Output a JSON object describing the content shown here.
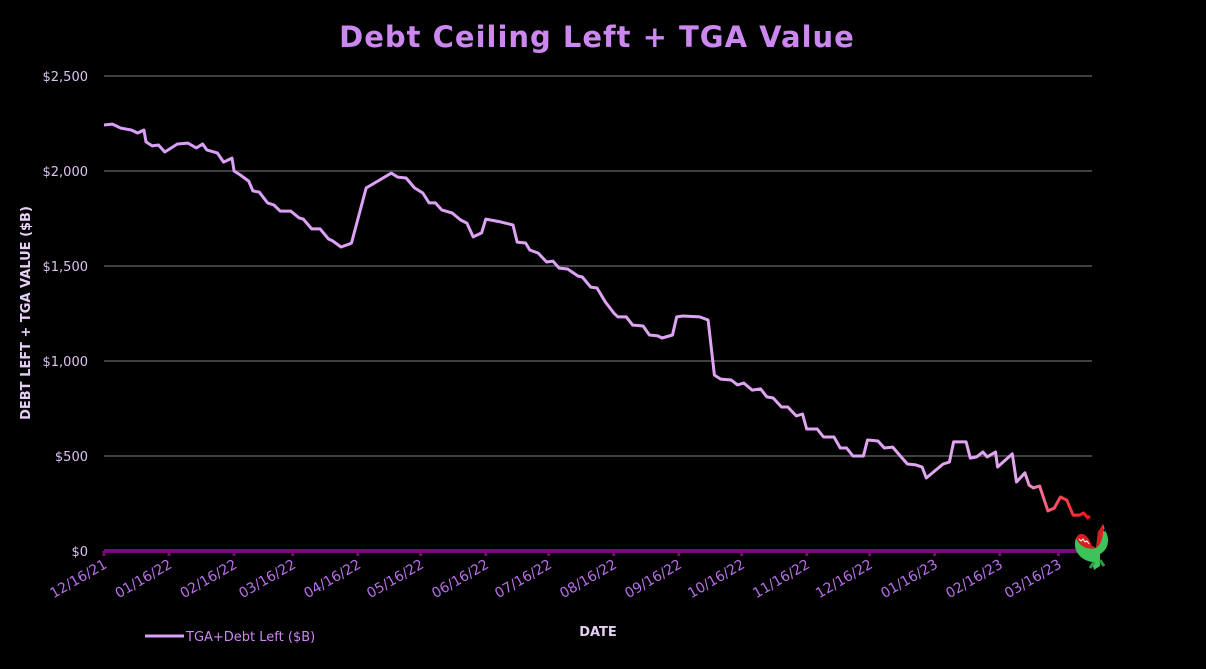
{
  "chart_data": {
    "type": "line",
    "title": "Debt Ceiling Left + TGA Value",
    "xlabel": "DATE",
    "ylabel": "DEBT LEFT + TGA VALUE ($B)",
    "xlim": [
      "2021-12-16",
      "2023-04-01"
    ],
    "ylim": [
      0,
      2500
    ],
    "y_ticks": [
      0,
      500,
      1000,
      1500,
      2000,
      2500
    ],
    "y_tick_labels": [
      "$0",
      "$500",
      "$1,000",
      "$1,500",
      "$2,000",
      "$2,500"
    ],
    "x_ticks": [
      "2021-12-16",
      "2022-01-16",
      "2022-02-16",
      "2022-03-16",
      "2022-04-16",
      "2022-05-16",
      "2022-06-16",
      "2022-07-16",
      "2022-08-16",
      "2022-09-16",
      "2022-10-16",
      "2022-11-16",
      "2022-12-16",
      "2023-01-16",
      "2023-02-16",
      "2023-03-16"
    ],
    "x_tick_labels": [
      "12/16/21",
      "01/16/22",
      "02/16/22",
      "03/16/22",
      "04/16/22",
      "05/16/22",
      "06/16/22",
      "07/16/22",
      "08/16/22",
      "09/16/22",
      "10/16/22",
      "11/16/22",
      "12/16/22",
      "01/16/23",
      "02/16/23",
      "03/16/23"
    ],
    "grid": true,
    "legend_placement": "bottom-left",
    "colors": {
      "line": "#d9a0f8",
      "line_end": "#ff1010",
      "axis": "#7a0a7a",
      "grid": "#404040",
      "title": "#cc88f0"
    },
    "icon": "crocodile-icon",
    "series": [
      {
        "name": "TGA+Debt Left ($B)",
        "x": [
          "2021-12-16",
          "2021-12-20",
          "2021-12-24",
          "2021-12-29",
          "2022-01-01",
          "2022-01-04",
          "2022-01-05",
          "2022-01-08",
          "2022-01-11",
          "2022-01-14",
          "2022-01-20",
          "2022-01-25",
          "2022-01-29",
          "2022-02-01",
          "2022-02-03",
          "2022-02-08",
          "2022-02-11",
          "2022-02-15",
          "2022-02-16",
          "2022-02-19",
          "2022-02-23",
          "2022-02-25",
          "2022-02-28",
          "2022-03-04",
          "2022-03-07",
          "2022-03-10",
          "2022-03-15",
          "2022-03-19",
          "2022-03-21",
          "2022-03-25",
          "2022-03-29",
          "2022-04-02",
          "2022-04-04",
          "2022-04-08",
          "2022-04-12",
          "2022-04-13",
          "2022-04-20",
          "2022-04-24",
          "2022-04-28",
          "2022-05-02",
          "2022-05-05",
          "2022-05-09",
          "2022-05-13",
          "2022-05-17",
          "2022-05-20",
          "2022-05-23",
          "2022-05-26",
          "2022-05-31",
          "2022-06-04",
          "2022-06-07",
          "2022-06-10",
          "2022-06-14",
          "2022-06-16",
          "2022-06-23",
          "2022-06-29",
          "2022-07-01",
          "2022-07-05",
          "2022-07-07",
          "2022-07-11",
          "2022-07-15",
          "2022-07-18",
          "2022-07-21",
          "2022-07-25",
          "2022-07-30",
          "2022-08-01",
          "2022-08-05",
          "2022-08-08",
          "2022-08-12",
          "2022-08-16",
          "2022-08-18",
          "2022-08-22",
          "2022-08-25",
          "2022-08-30",
          "2022-09-02",
          "2022-09-06",
          "2022-09-08",
          "2022-09-13",
          "2022-09-15",
          "2022-09-18",
          "2022-09-26",
          "2022-09-30",
          "2022-10-03",
          "2022-10-06",
          "2022-10-11",
          "2022-10-14",
          "2022-10-17",
          "2022-10-21",
          "2022-10-25",
          "2022-10-28",
          "2022-10-31",
          "2022-11-04",
          "2022-11-07",
          "2022-11-11",
          "2022-11-14",
          "2022-11-16",
          "2022-11-21",
          "2022-11-24",
          "2022-11-29",
          "2022-12-02",
          "2022-12-05",
          "2022-12-08",
          "2022-12-13",
          "2022-12-15",
          "2022-12-20",
          "2022-12-23",
          "2022-12-27",
          "2022-12-31",
          "2023-01-03",
          "2023-01-07",
          "2023-01-10",
          "2023-01-12",
          "2023-01-16",
          "2023-01-20",
          "2023-01-23",
          "2023-01-25",
          "2023-01-31",
          "2023-02-02",
          "2023-02-05",
          "2023-02-08",
          "2023-02-10",
          "2023-02-14",
          "2023-02-15",
          "2023-02-22",
          "2023-02-24",
          "2023-02-28",
          "2023-03-02",
          "2023-03-04",
          "2023-03-07",
          "2023-03-11",
          "2023-03-14",
          "2023-03-17",
          "2023-03-20",
          "2023-03-23",
          "2023-03-26",
          "2023-03-28",
          "2023-03-30",
          "2023-03-31"
        ],
        "values": [
          2242,
          2247,
          2226,
          2216,
          2200,
          2216,
          2153,
          2132,
          2137,
          2100,
          2142,
          2147,
          2121,
          2142,
          2111,
          2095,
          2047,
          2068,
          2000,
          1979,
          1947,
          1895,
          1889,
          1832,
          1821,
          1789,
          1789,
          1753,
          1747,
          1695,
          1695,
          1642,
          1632,
          1600,
          1616,
          1621,
          1911,
          1937,
          1963,
          1989,
          1968,
          1963,
          1911,
          1884,
          1832,
          1832,
          1795,
          1779,
          1742,
          1726,
          1653,
          1674,
          1747,
          1732,
          1716,
          1626,
          1621,
          1584,
          1568,
          1521,
          1526,
          1489,
          1484,
          1447,
          1442,
          1389,
          1384,
          1311,
          1253,
          1232,
          1232,
          1189,
          1184,
          1137,
          1132,
          1121,
          1137,
          1232,
          1237,
          1232,
          1216,
          926,
          905,
          900,
          874,
          884,
          847,
          853,
          811,
          805,
          758,
          758,
          711,
          721,
          642,
          642,
          600,
          600,
          542,
          542,
          500,
          500,
          584,
          579,
          542,
          547,
          495,
          458,
          453,
          442,
          384,
          421,
          458,
          468,
          574,
          574,
          489,
          495,
          521,
          495,
          521,
          442,
          511,
          363,
          411,
          347,
          332,
          342,
          211,
          226,
          284,
          268,
          189,
          189,
          200,
          174,
          184
        ]
      }
    ]
  }
}
